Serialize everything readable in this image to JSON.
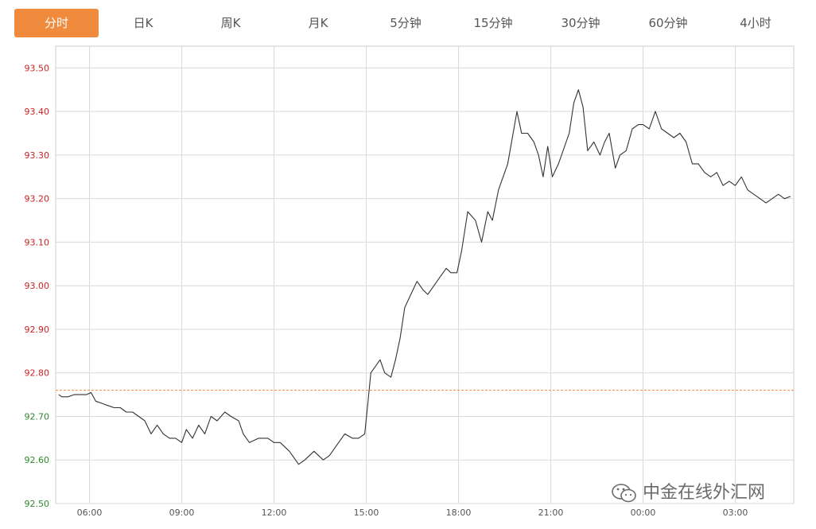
{
  "tabs": [
    {
      "label": "分时",
      "active": true
    },
    {
      "label": "日K",
      "active": false
    },
    {
      "label": "周K",
      "active": false
    },
    {
      "label": "月K",
      "active": false
    },
    {
      "label": "5分钟",
      "active": false
    },
    {
      "label": "15分钟",
      "active": false
    },
    {
      "label": "30分钟",
      "active": false
    },
    {
      "label": "60分钟",
      "active": false
    },
    {
      "label": "4小时",
      "active": false
    }
  ],
  "watermark": {
    "text": "中金在线外汇网",
    "icon": "wechat-icon"
  },
  "colors": {
    "line": "#333333",
    "above": "#cc2222",
    "below": "#2a8a2a",
    "reference": "#f08a3c",
    "grid": "#d9d9d9",
    "accent": "#f08a3c"
  },
  "chart_data": {
    "type": "line",
    "title": "",
    "xlabel": "",
    "ylabel": "",
    "ylim": [
      92.5,
      93.55
    ],
    "yticks": [
      "92.50",
      "92.60",
      "92.70",
      "92.80",
      "92.90",
      "93.00",
      "93.10",
      "93.20",
      "93.30",
      "93.40",
      "93.50"
    ],
    "reference_value": 92.76,
    "x_ticks": [
      {
        "label": "06:00",
        "hours": 6
      },
      {
        "label": "09:00",
        "hours": 9
      },
      {
        "label": "12:00",
        "hours": 12
      },
      {
        "label": "15:00",
        "hours": 15
      },
      {
        "label": "18:00",
        "hours": 18
      },
      {
        "label": "21:00",
        "hours": 21
      },
      {
        "label": "00:00",
        "hours": 24
      },
      {
        "label": "03:00",
        "hours": 27
      }
    ],
    "xlim_hours": [
      4.9,
      28.9
    ],
    "grid": true,
    "series": [
      {
        "x_hours": [
          5.0,
          5.1,
          5.3,
          5.5,
          5.7,
          5.9,
          6.05,
          6.2,
          6.4,
          6.6,
          6.8,
          7.0,
          7.2,
          7.4,
          7.6,
          7.8,
          8.0,
          8.2,
          8.4,
          8.6,
          8.8,
          9.0,
          9.15,
          9.35,
          9.55,
          9.75,
          9.95,
          10.15,
          10.4,
          10.6,
          10.85,
          11.0,
          11.2,
          11.5,
          11.8,
          12.0,
          12.2,
          12.5,
          12.8,
          13.0,
          13.3,
          13.6,
          13.8,
          14.0,
          14.3,
          14.55,
          14.75,
          14.95,
          15.05,
          15.15,
          15.25,
          15.45,
          15.6,
          15.8,
          15.95,
          16.1,
          16.25,
          16.45,
          16.65,
          16.85,
          17.0,
          17.2,
          17.4,
          17.6,
          17.75,
          17.95,
          18.1,
          18.3,
          18.55,
          18.75,
          18.95,
          19.1,
          19.3,
          19.45,
          19.6,
          19.75,
          19.9,
          20.05,
          20.25,
          20.45,
          20.6,
          20.75,
          20.9,
          21.05,
          21.25,
          21.45,
          21.6,
          21.75,
          21.9,
          22.05,
          22.2,
          22.4,
          22.6,
          22.75,
          22.9,
          23.1,
          23.25,
          23.45,
          23.65,
          23.85,
          24.0,
          24.2,
          24.4,
          24.6,
          24.8,
          25.0,
          25.2,
          25.4,
          25.6,
          25.8,
          26.0,
          26.2,
          26.4,
          26.6,
          26.8,
          27.0,
          27.2,
          27.4,
          27.6,
          27.8,
          28.0,
          28.2,
          28.4,
          28.6,
          28.8
        ],
        "values": [
          92.75,
          92.745,
          92.745,
          92.75,
          92.75,
          92.75,
          92.755,
          92.735,
          92.73,
          92.725,
          92.72,
          92.72,
          92.71,
          92.71,
          92.7,
          92.69,
          92.66,
          92.68,
          92.66,
          92.65,
          92.65,
          92.64,
          92.67,
          92.65,
          92.68,
          92.66,
          92.7,
          92.69,
          92.71,
          92.7,
          92.69,
          92.66,
          92.64,
          92.65,
          92.65,
          92.64,
          92.64,
          92.62,
          92.59,
          92.6,
          92.62,
          92.6,
          92.61,
          92.63,
          92.66,
          92.65,
          92.65,
          92.66,
          92.73,
          92.8,
          92.81,
          92.83,
          92.8,
          92.79,
          92.83,
          92.88,
          92.95,
          92.98,
          93.01,
          92.99,
          92.98,
          93.0,
          93.02,
          93.04,
          93.03,
          93.03,
          93.08,
          93.17,
          93.15,
          93.1,
          93.17,
          93.15,
          93.22,
          93.25,
          93.28,
          93.34,
          93.4,
          93.35,
          93.35,
          93.33,
          93.3,
          93.25,
          93.32,
          93.25,
          93.28,
          93.32,
          93.35,
          93.42,
          93.45,
          93.41,
          93.31,
          93.33,
          93.3,
          93.33,
          93.35,
          93.27,
          93.3,
          93.31,
          93.36,
          93.37,
          93.37,
          93.36,
          93.4,
          93.36,
          93.35,
          93.34,
          93.35,
          93.33,
          93.28,
          93.28,
          93.26,
          93.25,
          93.26,
          93.23,
          93.24,
          93.23,
          93.25,
          93.22,
          93.21,
          93.2,
          93.19,
          93.2,
          93.21,
          93.2,
          93.205
        ]
      }
    ]
  }
}
